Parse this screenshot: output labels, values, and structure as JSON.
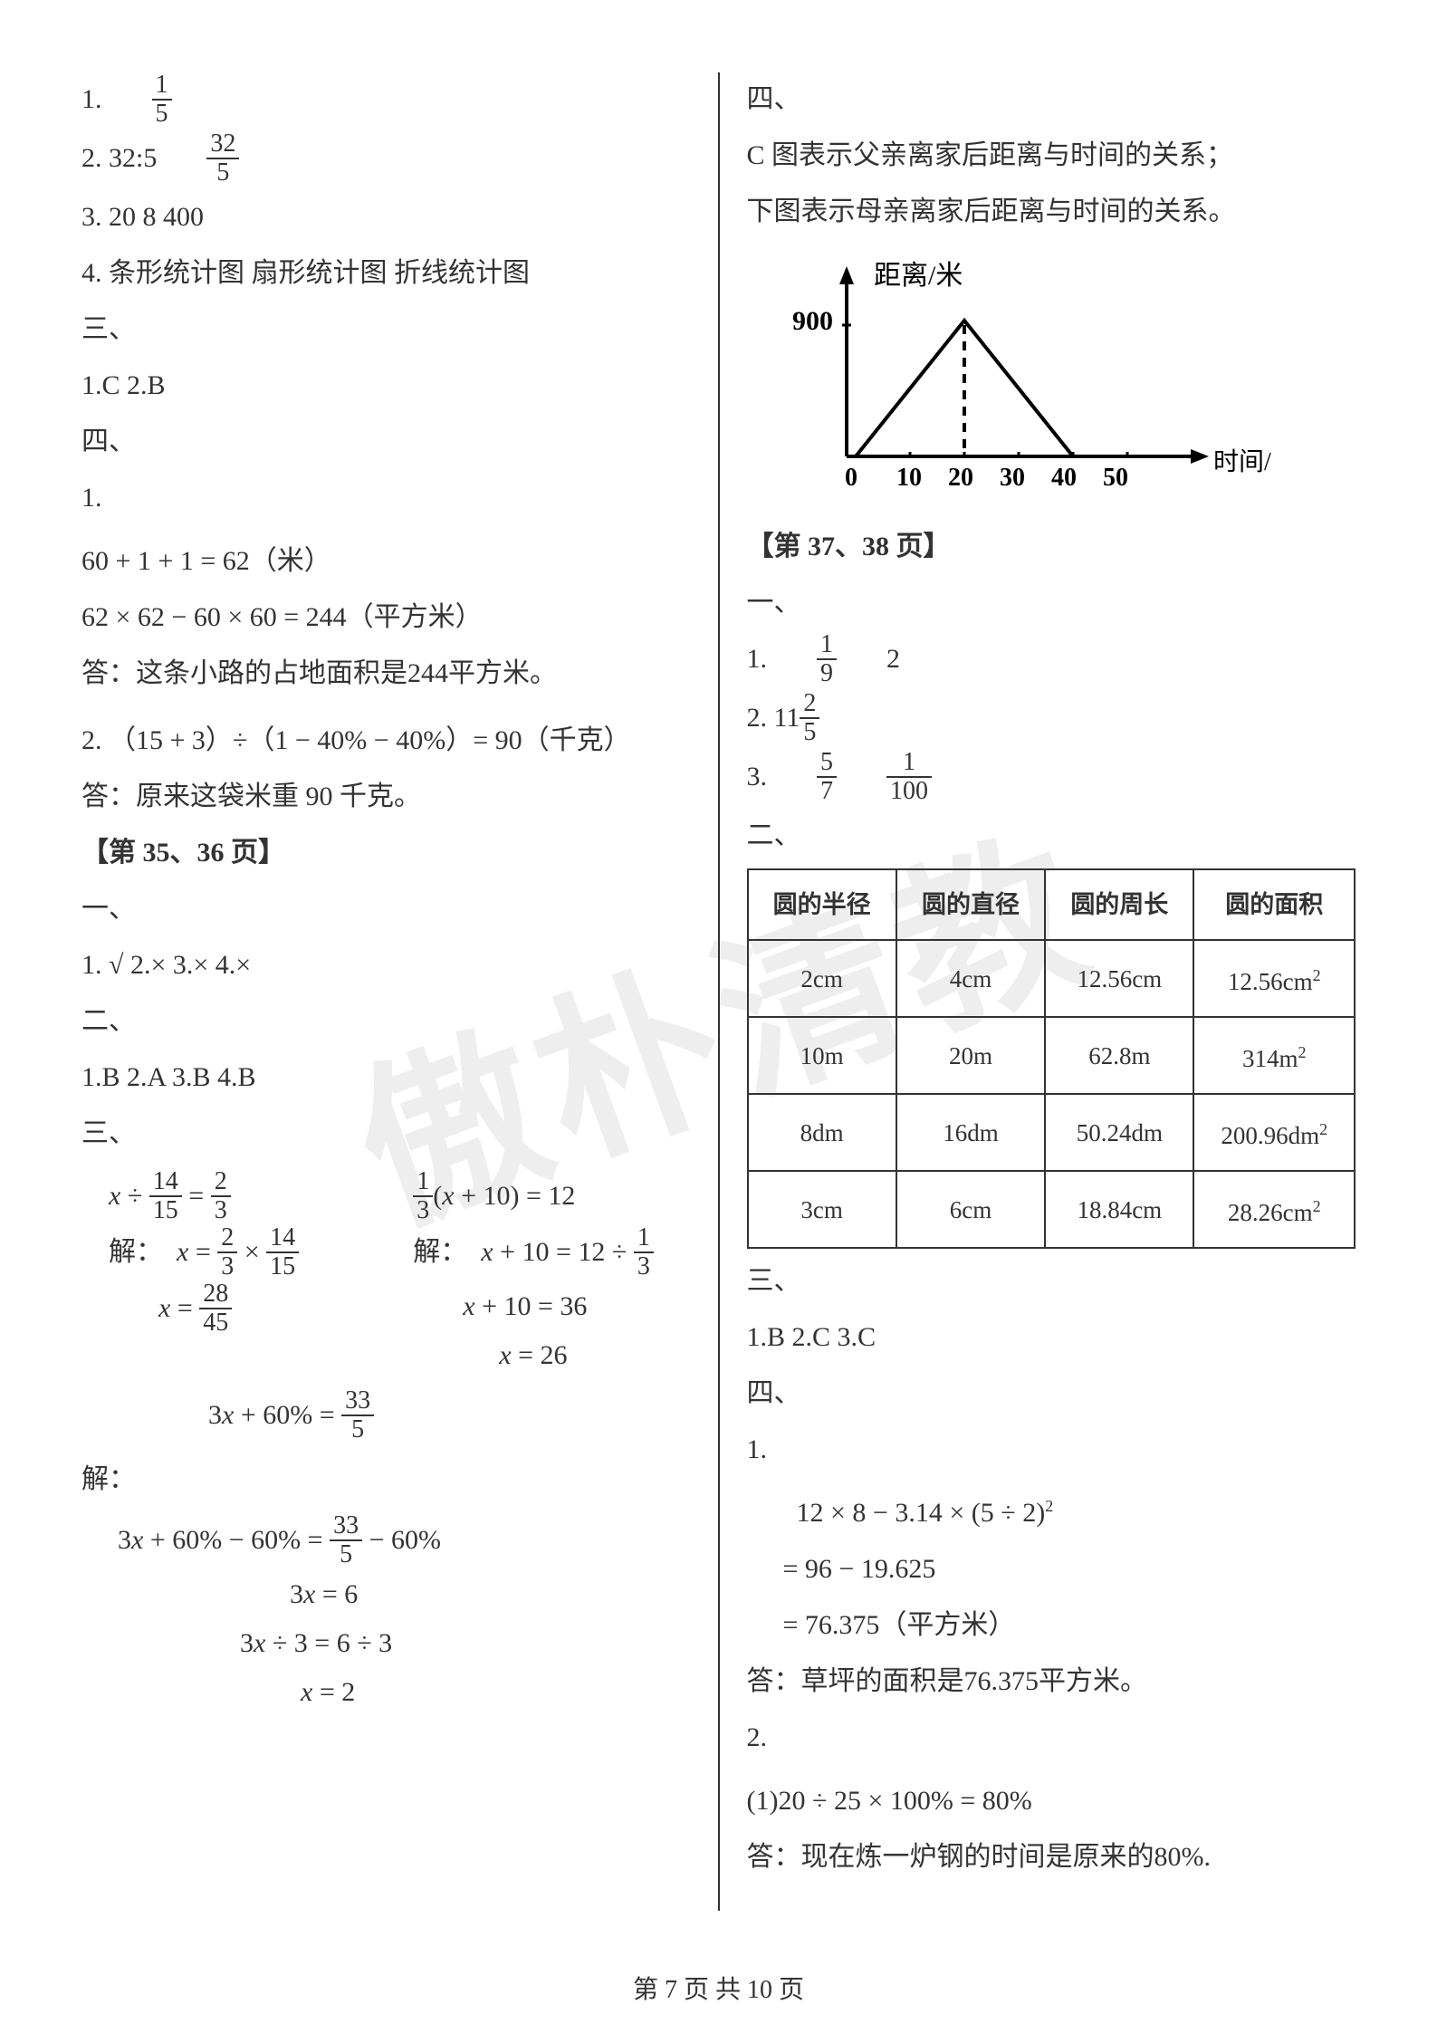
{
  "watermark": "傲朴清教",
  "footer": "第 7 页 共 10 页",
  "left": {
    "l1_prefix": "1.",
    "l1_num": "1",
    "l1_den": "5",
    "l2": "2.  32:5",
    "l2_num": "32",
    "l2_den": "5",
    "l3": "3.  20      8      400",
    "l4": "4.  条形统计图    扇形统计图    折线统计图",
    "s3": "三、",
    "s3a": "1.C      2.B",
    "s4": "四、",
    "s4_1": "1.",
    "q1_eq1": "60 + 1 + 1 = 62（米）",
    "q1_eq2": "62 × 62 − 60 × 60 = 244（平方米）",
    "q1_ans": "答：这条小路的占地面积是244平方米。",
    "q2": "2.  （15 + 3）÷（1 − 40% − 40%）= 90（千克）",
    "q2_ans": "答：原来这袋米重 90 千克。",
    "pg35": "【第 35、36 页】",
    "p35_s1": "一、",
    "p35_s1a": "1. √    2.×    3.×    4.×",
    "p35_s2": "二、",
    "p35_s2a": "1.B    2.A    3.B    4.B",
    "p35_s3": "三、",
    "eq1_l": {
      "a": "x ÷",
      "n1": "14",
      "d1": "15",
      "mid": "=",
      "n2": "2",
      "d2": "3"
    },
    "eq1_r": {
      "n1": "1",
      "d1": "3",
      "a": "(x + 10) = 12"
    },
    "sol_l": [
      "解：    x = ⟨2/3⟩ × ⟨14/15⟩",
      "x = ⟨28/45⟩"
    ],
    "sol_r": [
      "解：   x + 10 = 12 ÷ ⟨1/3⟩",
      "x + 10 = 36",
      "x = 26"
    ],
    "eq3_top": "3x + 60% = ⟨33/5⟩",
    "eq3_sol_label": "解：",
    "eq3_steps": [
      "3x + 60% − 60% = ⟨33/5⟩ − 60%",
      "3x = 6",
      "3x ÷ 3 = 6 ÷ 3",
      "x = 2"
    ]
  },
  "right": {
    "s4": "四、",
    "c_desc": "C 图表示父亲离家后距离与时间的关系；",
    "c_desc2": "下图表示母亲离家后距离与时间的关系。",
    "chart": {
      "y_label": "距离/米",
      "x_label": "时间/分",
      "y_max_label": "900",
      "x_ticks": [
        "0",
        "10",
        "20",
        "30",
        "40",
        "50"
      ],
      "peak_x": 20,
      "zero2_x": 40,
      "x_domain": [
        0,
        50
      ],
      "y_domain": [
        0,
        900
      ],
      "stroke": "#000000",
      "dash_x": 20
    },
    "pg37": "【第 37、38 页】",
    "p37_s1": "一、",
    "p37_1": "1.",
    "p37_1_n1": "1",
    "p37_1_d1": "9",
    "p37_1_b": "2",
    "p37_2": "2.  11",
    "p37_2_n": "2",
    "p37_2_d": "5",
    "p37_3": "3.",
    "p37_3_n1": "5",
    "p37_3_d1": "7",
    "p37_3_n2": "1",
    "p37_3_d2": "100",
    "p37_s2": "二、",
    "table": {
      "headers": [
        "圆的半径",
        "圆的直径",
        "圆的周长",
        "圆的面积"
      ],
      "rows": [
        [
          "2cm",
          "4cm",
          "12.56cm",
          "12.56cm²"
        ],
        [
          "10m",
          "20m",
          "62.8m",
          "314m²"
        ],
        [
          "8dm",
          "16dm",
          "50.24dm",
          "200.96dm²"
        ],
        [
          "3cm",
          "6cm",
          "18.84cm",
          "28.26cm²"
        ]
      ]
    },
    "p37_s3": "三、",
    "p37_s3a": "1.B    2.C    3.C",
    "p37_s4": "四、",
    "p37_s4_1": "1.",
    "q1_l1": "12 × 8 − 3.14 × (5 ÷ 2)²",
    "q1_l2": "= 96 − 19.625",
    "q1_l3": "= 76.375（平方米）",
    "q1_ans": "答：草坪的面积是76.375平方米。",
    "p37_s4_2": "2.",
    "q2_l1": "(1)20 ÷ 25 × 100% = 80%",
    "q2_ans": "答：现在炼一炉钢的时间是原来的80%."
  }
}
